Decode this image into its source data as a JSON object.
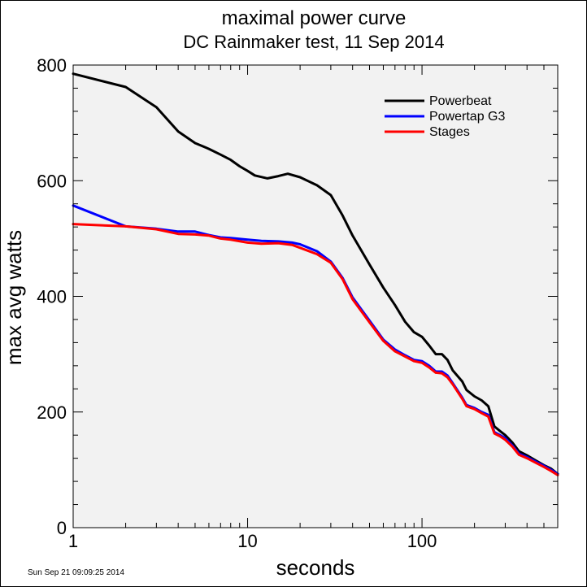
{
  "chart_data": {
    "type": "line",
    "title": "maximal power curve",
    "subtitle": "DC Rainmaker test, 11 Sep 2014",
    "xlabel": "seconds",
    "ylabel": "max avg watts",
    "x_scale": "log",
    "xlim": [
      1,
      600
    ],
    "ylim": [
      0,
      800
    ],
    "x_ticks": [
      1,
      10,
      100
    ],
    "x_tick_labels": [
      "1",
      "10",
      "100"
    ],
    "y_ticks": [
      0,
      200,
      400,
      600,
      800
    ],
    "y_tick_labels": [
      "0",
      "200",
      "400",
      "600",
      "800"
    ],
    "grid": false,
    "legend_position": "top-right",
    "footer": "Sun Sep 21 09:09:25 2014",
    "series": [
      {
        "name": "Powerbeat",
        "color": "#000000",
        "points": [
          [
            1,
            785
          ],
          [
            2,
            762
          ],
          [
            3,
            727
          ],
          [
            4,
            685
          ],
          [
            5,
            665
          ],
          [
            6,
            655
          ],
          [
            7,
            645
          ],
          [
            8,
            636
          ],
          [
            9,
            625
          ],
          [
            10,
            617
          ],
          [
            11,
            609
          ],
          [
            13,
            604
          ],
          [
            15,
            608
          ],
          [
            17,
            612
          ],
          [
            20,
            606
          ],
          [
            25,
            592
          ],
          [
            30,
            575
          ],
          [
            35,
            540
          ],
          [
            40,
            505
          ],
          [
            50,
            455
          ],
          [
            60,
            415
          ],
          [
            70,
            385
          ],
          [
            80,
            356
          ],
          [
            90,
            338
          ],
          [
            100,
            330
          ],
          [
            110,
            315
          ],
          [
            120,
            300
          ],
          [
            130,
            300
          ],
          [
            140,
            290
          ],
          [
            150,
            272
          ],
          [
            170,
            253
          ],
          [
            180,
            238
          ],
          [
            200,
            227
          ],
          [
            220,
            220
          ],
          [
            240,
            210
          ],
          [
            260,
            175
          ],
          [
            280,
            167
          ],
          [
            300,
            160
          ],
          [
            330,
            147
          ],
          [
            360,
            132
          ],
          [
            400,
            125
          ],
          [
            450,
            116
          ],
          [
            500,
            108
          ],
          [
            550,
            102
          ],
          [
            600,
            93
          ]
        ]
      },
      {
        "name": "Powertap G3",
        "color": "#0000ff",
        "points": [
          [
            1,
            557
          ],
          [
            2,
            521
          ],
          [
            3,
            517
          ],
          [
            4,
            512
          ],
          [
            5,
            512
          ],
          [
            6,
            506
          ],
          [
            7,
            502
          ],
          [
            8,
            501
          ],
          [
            10,
            498
          ],
          [
            12,
            496
          ],
          [
            15,
            495
          ],
          [
            18,
            493
          ],
          [
            20,
            490
          ],
          [
            25,
            478
          ],
          [
            30,
            460
          ],
          [
            35,
            432
          ],
          [
            40,
            398
          ],
          [
            50,
            358
          ],
          [
            60,
            325
          ],
          [
            70,
            308
          ],
          [
            80,
            298
          ],
          [
            90,
            290
          ],
          [
            100,
            288
          ],
          [
            110,
            280
          ],
          [
            120,
            270
          ],
          [
            130,
            270
          ],
          [
            140,
            263
          ],
          [
            150,
            250
          ],
          [
            170,
            225
          ],
          [
            180,
            212
          ],
          [
            200,
            207
          ],
          [
            220,
            200
          ],
          [
            240,
            195
          ],
          [
            260,
            165
          ],
          [
            280,
            160
          ],
          [
            300,
            155
          ],
          [
            330,
            142
          ],
          [
            360,
            128
          ],
          [
            400,
            122
          ],
          [
            450,
            114
          ],
          [
            500,
            107
          ],
          [
            550,
            100
          ],
          [
            600,
            93
          ]
        ]
      },
      {
        "name": "Stages",
        "color": "#ff0000",
        "points": [
          [
            1,
            525
          ],
          [
            2,
            521
          ],
          [
            3,
            516
          ],
          [
            4,
            508
          ],
          [
            5,
            507
          ],
          [
            6,
            505
          ],
          [
            7,
            500
          ],
          [
            8,
            498
          ],
          [
            10,
            493
          ],
          [
            12,
            491
          ],
          [
            15,
            492
          ],
          [
            18,
            489
          ],
          [
            20,
            484
          ],
          [
            25,
            473
          ],
          [
            30,
            458
          ],
          [
            35,
            430
          ],
          [
            40,
            395
          ],
          [
            50,
            355
          ],
          [
            60,
            323
          ],
          [
            70,
            305
          ],
          [
            80,
            296
          ],
          [
            90,
            288
          ],
          [
            100,
            285
          ],
          [
            110,
            277
          ],
          [
            120,
            268
          ],
          [
            130,
            267
          ],
          [
            140,
            260
          ],
          [
            150,
            248
          ],
          [
            170,
            223
          ],
          [
            180,
            210
          ],
          [
            200,
            205
          ],
          [
            220,
            198
          ],
          [
            240,
            192
          ],
          [
            260,
            163
          ],
          [
            280,
            158
          ],
          [
            300,
            152
          ],
          [
            330,
            140
          ],
          [
            360,
            126
          ],
          [
            400,
            120
          ],
          [
            450,
            112
          ],
          [
            500,
            105
          ],
          [
            550,
            98
          ],
          [
            600,
            91
          ]
        ]
      }
    ]
  }
}
